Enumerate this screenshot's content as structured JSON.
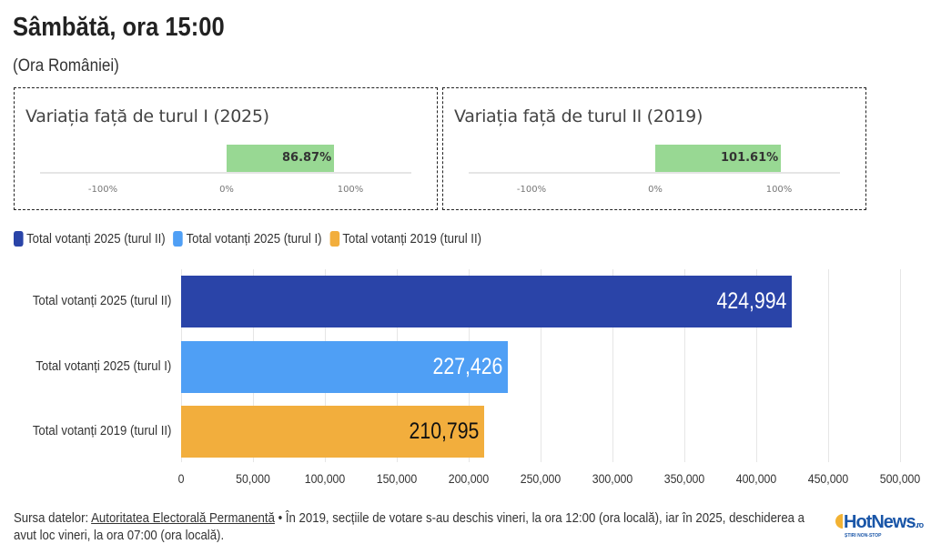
{
  "header": {
    "title": "Sâmbătă, ora 15:00",
    "subtitle": "(Ora României)"
  },
  "variation": [
    {
      "title": "Variația față de turul I (2025)",
      "value": 86.87,
      "label": "86.87%",
      "ticks": [
        "-100%",
        "0%",
        "100%"
      ]
    },
    {
      "title": "Variația față de turul II (2019)",
      "value": 101.61,
      "label": "101.61%",
      "ticks": [
        "-100%",
        "0%",
        "100%"
      ]
    }
  ],
  "chart_data": {
    "type": "bar",
    "orientation": "horizontal",
    "categories": [
      "Total votanți 2025 (turul II)",
      "Total votanți 2025 (turul I)",
      "Total votanți 2019 (turul II)"
    ],
    "values": [
      424994,
      227426,
      210795
    ],
    "labels": [
      "424,994",
      "227,426",
      "210,795"
    ],
    "colors": [
      "#2a44a8",
      "#4f9ff5",
      "#f2ae3d"
    ],
    "label_colors": [
      "#ffffff",
      "#ffffff",
      "#111111"
    ],
    "xlim": [
      0,
      500000
    ],
    "xticks": [
      0,
      50000,
      100000,
      150000,
      200000,
      250000,
      300000,
      350000,
      400000,
      450000,
      500000
    ],
    "xtick_labels": [
      "0",
      "50,000",
      "100,000",
      "150,000",
      "200,000",
      "250,000",
      "300,000",
      "350,000",
      "400,000",
      "450,000",
      "500,000"
    ],
    "legend": [
      "Total votanți 2025 (turul II)",
      "Total votanți 2025 (turul I)",
      "Total votanți 2019 (turul II)"
    ],
    "grid": true
  },
  "footer": {
    "prefix": "Sursa datelor: ",
    "source": "Autoritatea Electorală Permanentă",
    "note": " • În 2019, secțiile de votare s-au deschis vineri, la ora 12:00 (ora locală), iar în 2025, deschiderea a avut loc vineri, la ora 07:00 (ora locală)."
  },
  "logo": {
    "text": "HotNews",
    "suffix": ".ro",
    "tagline": "ȘTIRI NON-STOP"
  }
}
